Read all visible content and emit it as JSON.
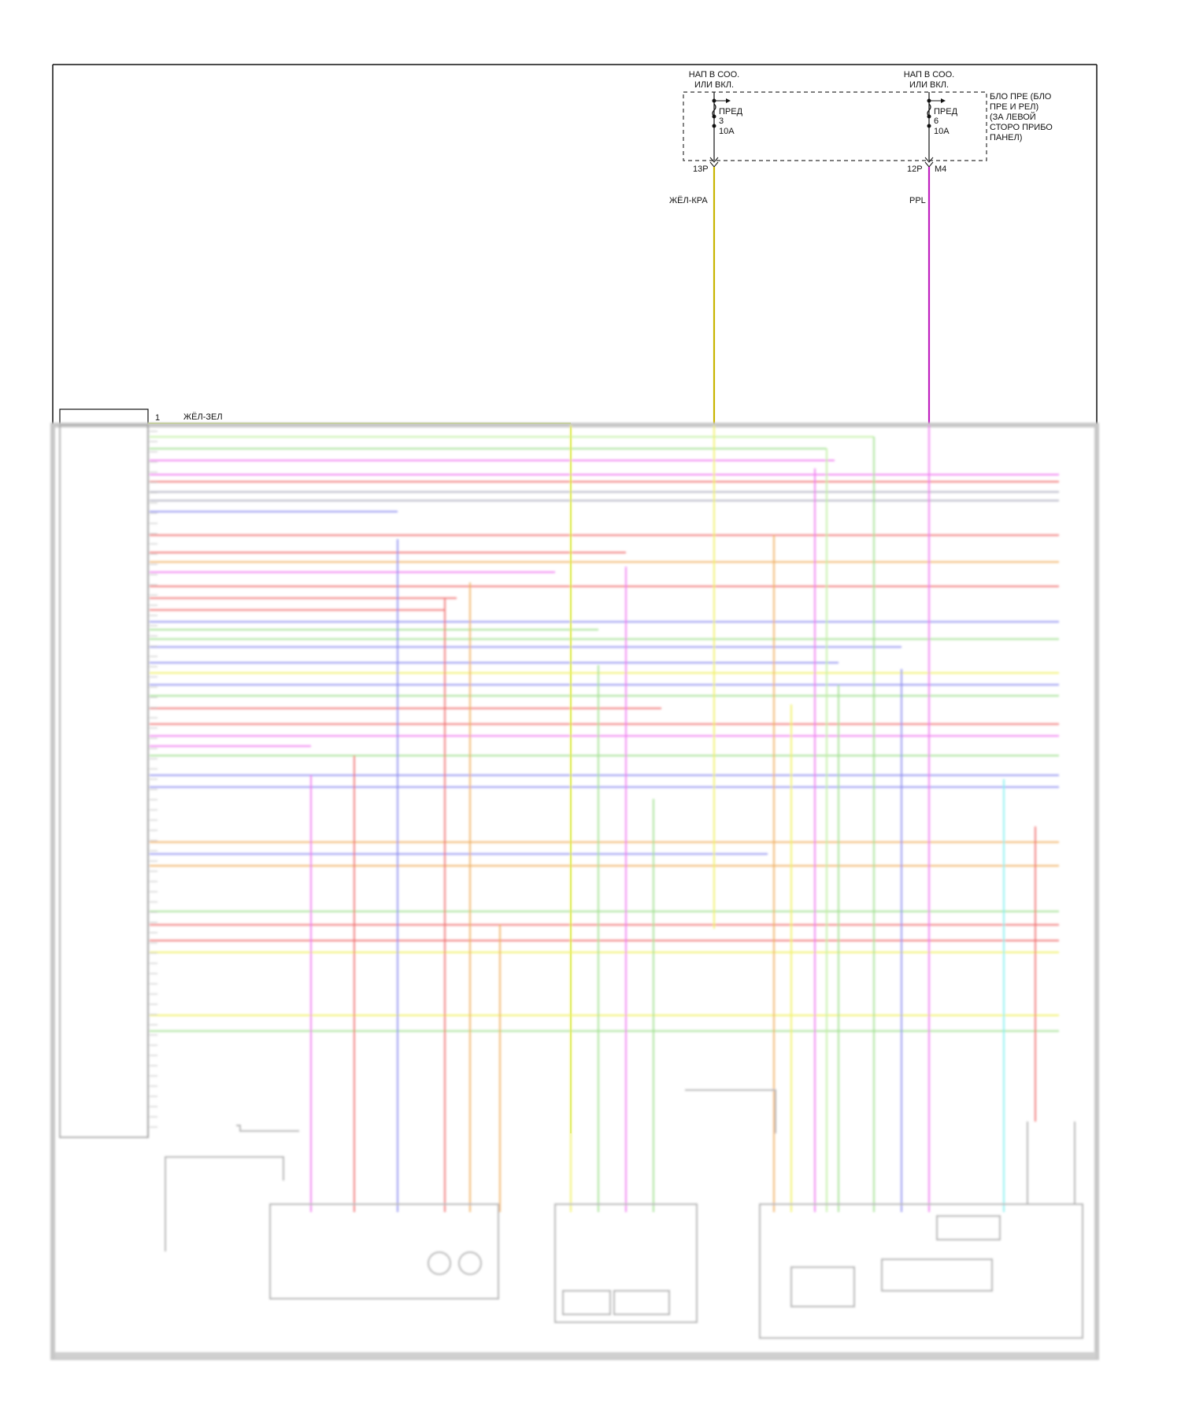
{
  "fuse_left": {
    "supply": "НАП В СОО. ИЛИ ВКЛ.",
    "supply_line1": "НАП В СОО.",
    "supply_line2": "ИЛИ ВКЛ.",
    "label": "ПРЕД",
    "number": "3",
    "rating": "10А",
    "connector": "13P",
    "wire_color_name": "ЖЁЛ-КРА",
    "wire_color": "#c8b400"
  },
  "fuse_right": {
    "supply": "НАП В СОО. ИЛИ ВКЛ.",
    "supply_line1": "НАП В СОО.",
    "supply_line2": "ИЛИ ВКЛ.",
    "label": "ПРЕД",
    "number": "6",
    "rating": "10А",
    "connector": "12P",
    "pin": "M4",
    "wire_color_name": "PPL",
    "wire_color": "#c020c0"
  },
  "fuse_block_label": [
    "БЛО ПРЕ (БЛО",
    "ПРЕ И РЕЛ)",
    "(ЗА ЛЕВОЙ",
    "СТОРО ПРИБО",
    "ПАНЕЛ)"
  ],
  "module": {
    "pin1_number": "1",
    "pin1_wire": "ЖЁЛ-ЗЕЛ"
  },
  "colors": {
    "frame": "#111111",
    "yellow_green": "#b8e020",
    "yellow": "#f0f060",
    "green": "#a0e090",
    "pink": "#f07af0",
    "red": "#f07070",
    "blue": "#9090f0",
    "gray": "#b0b0c0",
    "orange": "#f0b060",
    "cyan": "#80f0f0",
    "light_green": "#c0f0a0"
  }
}
